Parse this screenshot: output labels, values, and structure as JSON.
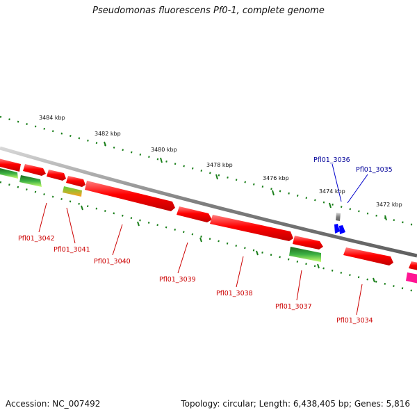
{
  "title": "Pseudomonas fluorescens Pf0-1, complete genome",
  "footer": {
    "accession": "Accession: NC_007492",
    "summary": "Topology: circular; Length: 6,438,405 bp; Genes: 5,816"
  },
  "colors": {
    "forward_gene": "#ff0000",
    "reverse_gene_a": "#2e8b2e",
    "reverse_gene_b": "#7fff00",
    "highlight_gene": "#0000ff",
    "label_red": "#cc0000",
    "label_blue": "#000099",
    "ruler_tick": "#1a7f1a",
    "backbone": "#808080",
    "pink_gene": "#ff1493"
  },
  "ruler": {
    "ticks": [
      "3484 kbp",
      "3482 kbp",
      "3480 kbp",
      "3478 kbp",
      "3476 kbp",
      "3474 kbp",
      "3472 kbp"
    ]
  },
  "genes": {
    "labels": [
      "Pfl01_3042",
      "Pfl01_3041",
      "Pfl01_3040",
      "Pfl01_3039",
      "Pfl01_3038",
      "Pfl01_3037",
      "Pfl01_3036",
      "Pfl01_3035",
      "Pfl01_3034"
    ]
  }
}
